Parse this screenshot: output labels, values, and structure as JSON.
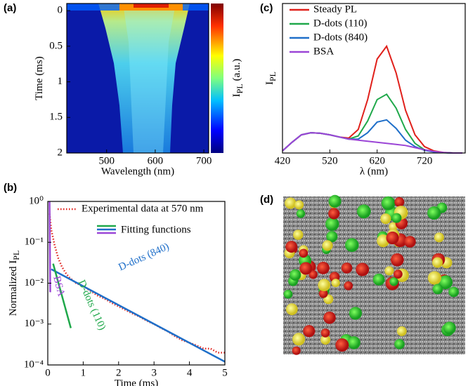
{
  "chart_data": [
    {
      "type": "heatmap",
      "panel_label": "(a)",
      "x_label": "Wavelength (nm)",
      "y_label": "Time (ms)",
      "xlim": [
        418,
        710
      ],
      "xticks": [
        500,
        600,
        700
      ],
      "ylim": [
        -0.1,
        2
      ],
      "y_inverted": true,
      "yticks": [
        0,
        0.5,
        1,
        1.5,
        2
      ],
      "colorbar_label": "I",
      "colorbar_label_sub": "PL",
      "colorbar_label_unit": "(a.u.)"
    },
    {
      "type": "line",
      "panel_label": "(b)",
      "x_label": "Time (ms)",
      "y_label": "Normalized I",
      "y_label_sub": "PL",
      "xlim": [
        0,
        5
      ],
      "xticks": [
        0,
        1,
        2,
        3,
        4,
        5
      ],
      "ylim": [
        0.0001,
        1
      ],
      "log_y": true,
      "yticks": [
        {
          "value": 1,
          "label": "10⁰"
        },
        {
          "value": 0.1,
          "label": "10⁻¹"
        },
        {
          "value": 0.01,
          "label": "10⁻²"
        },
        {
          "value": 0.001,
          "label": "10⁻³"
        },
        {
          "value": 0.0001,
          "label": "10⁻⁴"
        }
      ],
      "fit_legend_label": "Fitting functions",
      "series": [
        {
          "name": "Experimental data at 570 nm",
          "color": "#e0201b",
          "style": "dotted",
          "x": [
            0.05,
            0.1,
            0.2,
            0.3,
            0.4,
            0.5,
            0.6,
            0.8,
            1.0,
            1.2,
            1.4,
            1.6,
            1.8,
            2.0,
            2.2,
            2.4,
            2.6,
            2.8,
            3.0,
            3.2,
            3.4,
            3.6,
            3.8,
            4.0,
            4.2,
            4.4,
            4.6,
            4.8,
            5.0
          ],
          "values": [
            0.5,
            0.2,
            0.08,
            0.04,
            0.025,
            0.018,
            0.014,
            0.01,
            0.0085,
            0.0065,
            0.005,
            0.0042,
            0.0033,
            0.0027,
            0.0022,
            0.0018,
            0.0015,
            0.0012,
            0.001,
            0.0008,
            0.00065,
            0.0005,
            0.0004,
            0.00035,
            0.0003,
            0.00025,
            0.00025,
            0.0002,
            0.0002
          ]
        },
        {
          "name": "D-dots (840)",
          "color": "#1f6fc9",
          "style": "fit",
          "x": [
            0.1,
            5
          ],
          "values": [
            0.022,
            0.00012
          ]
        },
        {
          "name": "D-dots (110)",
          "color": "#1fa84a",
          "style": "fit",
          "x": [
            0.15,
            0.65
          ],
          "values": [
            0.03,
            0.0008
          ]
        },
        {
          "name": "BSA",
          "color": "#9b45d6",
          "style": "fit",
          "x": [
            0.05,
            0.07
          ],
          "values": [
            1,
            0.006
          ]
        }
      ]
    },
    {
      "type": "line",
      "panel_label": "(c)",
      "x_label": "λ (nm)",
      "y_label": "I",
      "y_label_sub": "PL",
      "xlim": [
        420,
        806
      ],
      "xticks": [
        420,
        520,
        620,
        720
      ],
      "ylim": [
        0,
        1.4
      ],
      "series": [
        {
          "name": "Steady PL",
          "color": "#e0201b",
          "x": [
            420,
            440,
            460,
            480,
            500,
            520,
            540,
            560,
            580,
            600,
            620,
            640,
            660,
            680,
            700,
            720,
            740,
            760,
            780,
            800
          ],
          "values": [
            0.02,
            0.1,
            0.17,
            0.19,
            0.185,
            0.17,
            0.15,
            0.14,
            0.22,
            0.5,
            0.88,
            1.0,
            0.75,
            0.4,
            0.17,
            0.06,
            0.02,
            0.005,
            0,
            0
          ]
        },
        {
          "name": "D-dots (110)",
          "color": "#1fa84a",
          "x": [
            420,
            440,
            460,
            480,
            500,
            520,
            540,
            560,
            580,
            600,
            620,
            640,
            660,
            680,
            700,
            720,
            740,
            760,
            780,
            800
          ],
          "values": [
            0.02,
            0.1,
            0.17,
            0.19,
            0.185,
            0.17,
            0.15,
            0.13,
            0.16,
            0.3,
            0.5,
            0.55,
            0.42,
            0.22,
            0.09,
            0.03,
            0.01,
            0.003,
            0,
            0
          ]
        },
        {
          "name": "D-dots (840)",
          "color": "#1f6fc9",
          "x": [
            420,
            440,
            460,
            480,
            500,
            520,
            540,
            560,
            580,
            600,
            620,
            640,
            660,
            680,
            700,
            720,
            740,
            760,
            780,
            800
          ],
          "values": [
            0.02,
            0.1,
            0.17,
            0.19,
            0.185,
            0.17,
            0.15,
            0.13,
            0.13,
            0.19,
            0.29,
            0.31,
            0.23,
            0.12,
            0.06,
            0.025,
            0.01,
            0.003,
            0,
            0
          ]
        },
        {
          "name": "BSA",
          "color": "#9b45d6",
          "x": [
            420,
            440,
            460,
            480,
            500,
            520,
            540,
            560,
            580,
            600,
            620,
            640,
            660,
            680,
            700,
            720,
            740,
            760,
            780,
            800
          ],
          "values": [
            0.02,
            0.1,
            0.17,
            0.19,
            0.185,
            0.17,
            0.15,
            0.13,
            0.12,
            0.11,
            0.1,
            0.09,
            0.08,
            0.07,
            0.05,
            0.03,
            0.015,
            0.005,
            0,
            0
          ]
        }
      ]
    },
    {
      "type": "image",
      "panel_label": "(d)"
    }
  ]
}
